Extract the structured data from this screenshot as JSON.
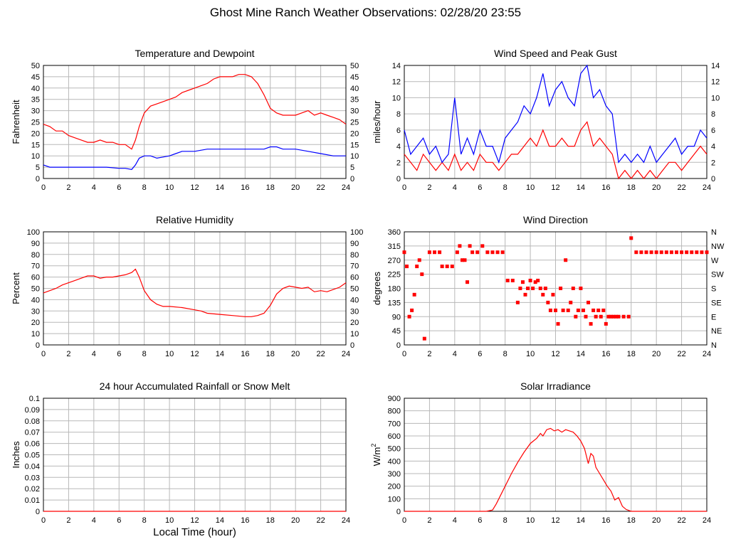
{
  "page": {
    "title": "Ghost Mine Ranch Weather Observations: 02/28/20 23:55"
  },
  "chart_data": [
    {
      "id": "temp",
      "type": "line",
      "title": "Temperature and Dewpoint",
      "xlabel": "",
      "ylabel": "Fahrenheit",
      "xlim": [
        0,
        24
      ],
      "ylim": [
        0,
        50
      ],
      "xticks": [
        0,
        2,
        4,
        6,
        8,
        10,
        12,
        14,
        16,
        18,
        20,
        22,
        24
      ],
      "yticks": [
        0,
        5,
        10,
        15,
        20,
        25,
        30,
        35,
        40,
        45,
        50
      ],
      "right_axis_ticks": [
        "0",
        "5",
        "10",
        "15",
        "20",
        "25",
        "30",
        "35",
        "40",
        "45",
        "50"
      ],
      "grid": true,
      "series": [
        {
          "color": "#ff0000",
          "x": [
            0,
            0.5,
            1,
            1.5,
            2,
            2.5,
            3,
            3.5,
            4,
            4.5,
            5,
            5.5,
            6,
            6.5,
            7,
            7.3,
            7.6,
            8,
            8.5,
            9,
            9.5,
            10,
            10.5,
            11,
            11.5,
            12,
            12.5,
            13,
            13.5,
            14,
            14.5,
            15,
            15.5,
            16,
            16.5,
            17,
            17.5,
            18,
            18.5,
            19,
            19.5,
            20,
            20.5,
            21,
            21.5,
            22,
            22.5,
            23,
            23.5,
            24
          ],
          "y": [
            24,
            23,
            21,
            21,
            19,
            18,
            17,
            16,
            16,
            17,
            16,
            16,
            15,
            15,
            13,
            17,
            23,
            29,
            32,
            33,
            34,
            35,
            36,
            38,
            39,
            40,
            41,
            42,
            44,
            45,
            45,
            45,
            46,
            46,
            45,
            42,
            37,
            31,
            29,
            28,
            28,
            28,
            29,
            30,
            28,
            29,
            28,
            27,
            26,
            24
          ]
        },
        {
          "color": "#0000ff",
          "x": [
            0,
            0.5,
            1,
            2,
            3,
            4,
            5,
            6,
            6.5,
            7,
            7.3,
            7.6,
            8,
            8.5,
            9,
            10,
            10.5,
            11,
            12,
            13,
            14,
            15,
            16,
            17,
            17.5,
            18,
            18.5,
            19,
            20,
            21,
            22,
            23,
            24
          ],
          "y": [
            6,
            5,
            5,
            5,
            5,
            5,
            5,
            4.5,
            4.5,
            4,
            6,
            9,
            10,
            10,
            9,
            10,
            11,
            12,
            12,
            13,
            13,
            13,
            13,
            13,
            13,
            14,
            14,
            13,
            13,
            12,
            11,
            10,
            10
          ]
        }
      ]
    },
    {
      "id": "wind",
      "type": "line",
      "title": "Wind Speed and Peak Gust",
      "xlabel": "",
      "ylabel": "miles/hour",
      "xlim": [
        0,
        24
      ],
      "ylim": [
        0,
        14
      ],
      "xticks": [
        0,
        2,
        4,
        6,
        8,
        10,
        12,
        14,
        16,
        18,
        20,
        22,
        24
      ],
      "yticks": [
        0,
        2,
        4,
        6,
        8,
        10,
        12,
        14
      ],
      "right_axis_ticks": [
        "0",
        "2",
        "4",
        "6",
        "8",
        "10",
        "12",
        "14"
      ],
      "grid": true,
      "series": [
        {
          "color": "#ff0000",
          "x": [
            0,
            0.5,
            1,
            1.5,
            2,
            2.5,
            3,
            3.5,
            4,
            4.5,
            5,
            5.5,
            6,
            6.5,
            7,
            7.5,
            8,
            8.5,
            9,
            9.5,
            10,
            10.5,
            11,
            11.5,
            12,
            12.5,
            13,
            13.5,
            14,
            14.5,
            15,
            15.5,
            16,
            16.5,
            17,
            17.5,
            18,
            18.5,
            19,
            19.5,
            20,
            20.5,
            21,
            21.5,
            22,
            22.5,
            23,
            23.5,
            24
          ],
          "y": [
            3,
            2,
            1,
            3,
            2,
            1,
            2,
            1,
            3,
            1,
            2,
            1,
            3,
            2,
            2,
            1,
            2,
            3,
            3,
            4,
            5,
            4,
            6,
            4,
            4,
            5,
            4,
            4,
            6,
            7,
            4,
            5,
            4,
            3,
            0,
            1,
            0,
            1,
            0,
            1,
            0,
            1,
            2,
            2,
            1,
            2,
            3,
            4,
            3
          ]
        },
        {
          "color": "#0000ff",
          "x": [
            0,
            0.5,
            1,
            1.5,
            2,
            2.5,
            3,
            3.5,
            4,
            4.5,
            5,
            5.5,
            6,
            6.5,
            7,
            7.5,
            8,
            8.5,
            9,
            9.5,
            10,
            10.5,
            11,
            11.5,
            12,
            12.5,
            13,
            13.5,
            14,
            14.5,
            15,
            15.5,
            16,
            16.5,
            17,
            17.5,
            18,
            18.5,
            19,
            19.5,
            20,
            20.5,
            21,
            21.5,
            22,
            22.5,
            23,
            23.5,
            24
          ],
          "y": [
            6,
            3,
            4,
            5,
            3,
            4,
            2,
            3,
            10,
            3,
            5,
            3,
            6,
            4,
            4,
            2,
            5,
            6,
            7,
            9,
            8,
            10,
            13,
            9,
            11,
            12,
            10,
            9,
            13,
            14,
            10,
            11,
            9,
            8,
            2,
            3,
            2,
            3,
            2,
            4,
            2,
            3,
            4,
            5,
            3,
            4,
            4,
            6,
            5
          ]
        }
      ]
    },
    {
      "id": "rh",
      "type": "line",
      "title": "Relative Humidity",
      "xlabel": "",
      "ylabel": "Percent",
      "xlim": [
        0,
        24
      ],
      "ylim": [
        0,
        100
      ],
      "xticks": [
        0,
        2,
        4,
        6,
        8,
        10,
        12,
        14,
        16,
        18,
        20,
        22,
        24
      ],
      "yticks": [
        0,
        10,
        20,
        30,
        40,
        50,
        60,
        70,
        80,
        90,
        100
      ],
      "right_axis_ticks": [
        "0",
        "10",
        "20",
        "30",
        "40",
        "50",
        "60",
        "70",
        "80",
        "90",
        "100"
      ],
      "grid": true,
      "series": [
        {
          "color": "#ff0000",
          "x": [
            0,
            0.5,
            1,
            1.5,
            2,
            2.5,
            3,
            3.5,
            4,
            4.5,
            5,
            5.5,
            6,
            6.5,
            7,
            7.3,
            7.6,
            8,
            8.5,
            9,
            9.5,
            10,
            11,
            12,
            12.5,
            13,
            14,
            15,
            16,
            16.5,
            17,
            17.5,
            18,
            18.5,
            19,
            19.5,
            20,
            20.5,
            21,
            21.5,
            22,
            22.5,
            23,
            23.5,
            24
          ],
          "y": [
            46,
            48,
            50,
            53,
            55,
            57,
            59,
            61,
            61,
            59,
            60,
            60,
            61,
            62,
            64,
            67,
            60,
            48,
            40,
            36,
            34,
            34,
            33,
            31,
            30,
            28,
            27,
            26,
            25,
            25,
            26,
            28,
            35,
            45,
            50,
            52,
            51,
            50,
            51,
            47,
            48,
            47,
            49,
            51,
            55
          ]
        }
      ]
    },
    {
      "id": "dir",
      "type": "scatter",
      "title": "Wind Direction",
      "xlabel": "",
      "ylabel": "degrees",
      "xlim": [
        0,
        24
      ],
      "ylim": [
        0,
        360
      ],
      "xticks": [
        0,
        2,
        4,
        6,
        8,
        10,
        12,
        14,
        16,
        18,
        20,
        22,
        24
      ],
      "yticks": [
        0,
        45,
        90,
        135,
        180,
        225,
        270,
        315,
        360
      ],
      "right_axis_ticks": [
        "N",
        "NE",
        "E",
        "SE",
        "S",
        "SW",
        "W",
        "NW",
        "N"
      ],
      "grid": true,
      "series": [
        {
          "color": "#ff0000",
          "x": [
            0,
            0.2,
            0.4,
            0.6,
            0.8,
            1,
            1.2,
            1.4,
            1.6,
            2,
            2.4,
            2.8,
            3,
            3.4,
            3.8,
            4.2,
            4.4,
            4.6,
            4.8,
            5,
            5.2,
            5.4,
            5.8,
            6.2,
            6.6,
            7,
            7.4,
            7.8,
            8.2,
            8.6,
            9,
            9.2,
            9.4,
            9.6,
            9.8,
            10,
            10.2,
            10.4,
            10.6,
            10.8,
            11,
            11.2,
            11.4,
            11.6,
            11.8,
            12,
            12.2,
            12.4,
            12.6,
            12.8,
            13,
            13.2,
            13.4,
            13.6,
            13.8,
            14,
            14.2,
            14.4,
            14.6,
            14.8,
            15,
            15.2,
            15.4,
            15.6,
            15.8,
            16,
            16.2,
            16.4,
            16.6,
            16.8,
            17,
            17.4,
            17.8,
            18,
            18.4,
            18.8,
            19.2,
            19.6,
            20,
            20.4,
            20.8,
            21.2,
            21.6,
            22,
            22.4,
            22.8,
            23.2,
            23.6,
            24
          ],
          "y": [
            295,
            250,
            90,
            110,
            160,
            250,
            270,
            225,
            20,
            295,
            295,
            295,
            250,
            250,
            250,
            295,
            315,
            270,
            270,
            200,
            315,
            295,
            295,
            315,
            295,
            295,
            295,
            295,
            205,
            205,
            135,
            180,
            200,
            160,
            180,
            205,
            180,
            200,
            205,
            180,
            160,
            180,
            135,
            110,
            160,
            110,
            67,
            180,
            110,
            270,
            110,
            135,
            180,
            90,
            110,
            180,
            110,
            90,
            135,
            67,
            110,
            90,
            110,
            90,
            110,
            67,
            90,
            90,
            90,
            90,
            90,
            90,
            90,
            340,
            295,
            295,
            295,
            295,
            295,
            295,
            295,
            295,
            295,
            295,
            295,
            295,
            295,
            295,
            295
          ]
        }
      ]
    },
    {
      "id": "rain",
      "type": "line",
      "title": "24 hour Accumulated Rainfall or Snow Melt",
      "xlabel": "Local Time (hour)",
      "ylabel": "Inches",
      "xlim": [
        0,
        24
      ],
      "ylim": [
        0,
        0.1
      ],
      "xticks": [
        0,
        2,
        4,
        6,
        8,
        10,
        12,
        14,
        16,
        18,
        20,
        22,
        24
      ],
      "yticks": [
        0,
        0.01,
        0.02,
        0.03,
        0.04,
        0.05,
        0.06,
        0.07,
        0.08,
        0.09,
        0.1
      ],
      "right_axis_ticks": [],
      "grid": true,
      "series": [
        {
          "color": "#ff0000",
          "x": [
            0,
            24
          ],
          "y": [
            0,
            0
          ]
        }
      ]
    },
    {
      "id": "solar",
      "type": "line",
      "title": "Solar Irradiance",
      "xlabel": "",
      "ylabel": "W/m2",
      "xlim": [
        0,
        24
      ],
      "ylim": [
        0,
        900
      ],
      "xticks": [
        0,
        2,
        4,
        6,
        8,
        10,
        12,
        14,
        16,
        18,
        20,
        22,
        24
      ],
      "yticks": [
        0,
        100,
        200,
        300,
        400,
        500,
        600,
        700,
        800,
        900
      ],
      "right_axis_ticks": [],
      "grid": true,
      "series": [
        {
          "color": "#ff0000",
          "x": [
            0,
            6.5,
            7,
            7.3,
            7.6,
            8,
            8.5,
            9,
            9.5,
            10,
            10.5,
            10.8,
            11,
            11.3,
            11.6,
            11.9,
            12.2,
            12.5,
            12.8,
            13.1,
            13.4,
            13.7,
            14,
            14.3,
            14.6,
            14.8,
            15,
            15.2,
            15.5,
            15.8,
            16.1,
            16.4,
            16.7,
            17,
            17.3,
            17.6,
            18,
            18.5,
            24
          ],
          "y": [
            0,
            0,
            10,
            60,
            120,
            200,
            300,
            390,
            470,
            540,
            580,
            620,
            600,
            650,
            660,
            640,
            650,
            630,
            650,
            640,
            630,
            600,
            560,
            500,
            380,
            460,
            440,
            350,
            300,
            250,
            200,
            160,
            90,
            110,
            40,
            15,
            0,
            0,
            0
          ]
        }
      ]
    }
  ]
}
